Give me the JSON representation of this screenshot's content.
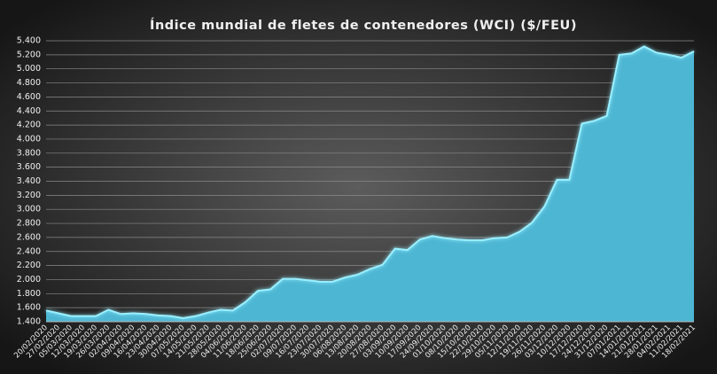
{
  "chart_data": {
    "type": "area",
    "title": "Índice mundial de fletes de contenedores (WCI) ($/FEU)",
    "categories": [
      "20/02/2020",
      "27/02/2020",
      "05/03/2020",
      "12/03/2020",
      "19/03/2020",
      "26/03/2020",
      "02/04/2020",
      "09/04/2020",
      "16/04/2020",
      "23/04/2020",
      "30/04/2020",
      "07/05/2020",
      "14/05/2020",
      "21/05/2020",
      "28/05/2020",
      "04/06/2020",
      "11/06/2020",
      "18/06/2020",
      "25/06/2020",
      "02/07/2020",
      "09/07/2020",
      "16/07/2020",
      "23/07/2020",
      "30/07/2020",
      "06/08/2020",
      "13/08/2020",
      "20/08/2020",
      "27/08/2020",
      "03/09/2020",
      "10/09/2020",
      "17/09/2020",
      "24/09/2020",
      "01/10/2020",
      "08/10/2020",
      "15/10/2020",
      "22/10/2020",
      "29/10/2020",
      "05/11/2020",
      "12/11/2020",
      "19/11/2020",
      "26/11/2020",
      "03/12/2020",
      "10/12/2020",
      "17/12/2020",
      "24/12/2020",
      "31/12/2020",
      "07/01/2021",
      "14/01/2021",
      "21/01/2021",
      "28/01/2021",
      "04/02/2021",
      "11/02/2021",
      "18/02/2021"
    ],
    "values": [
      1560,
      1520,
      1480,
      1480,
      1480,
      1570,
      1510,
      1520,
      1510,
      1490,
      1480,
      1450,
      1480,
      1530,
      1570,
      1560,
      1680,
      1840,
      1860,
      2010,
      2010,
      1990,
      1970,
      1970,
      2030,
      2070,
      2150,
      2210,
      2440,
      2420,
      2570,
      2620,
      2590,
      2570,
      2560,
      2560,
      2590,
      2600,
      2680,
      2810,
      3040,
      3420,
      3420,
      4220,
      4260,
      4330,
      5200,
      5220,
      5320,
      5230,
      5200,
      5160,
      5250
    ],
    "color": "#4db6d3",
    "ylim": [
      1400,
      5400
    ],
    "yticks": [
      {
        "value": 1400,
        "label": "1.400"
      },
      {
        "value": 1600,
        "label": "1.600"
      },
      {
        "value": 1800,
        "label": "1.800"
      },
      {
        "value": 2000,
        "label": "2.000"
      },
      {
        "value": 2200,
        "label": "2.200"
      },
      {
        "value": 2400,
        "label": "2.400"
      },
      {
        "value": 2600,
        "label": "2.600"
      },
      {
        "value": 2800,
        "label": "2.800"
      },
      {
        "value": 3000,
        "label": "3.000"
      },
      {
        "value": 3200,
        "label": "3.200"
      },
      {
        "value": 3400,
        "label": "3.400"
      },
      {
        "value": 3600,
        "label": "3.600"
      },
      {
        "value": 3800,
        "label": "3.800"
      },
      {
        "value": 4000,
        "label": "4.000"
      },
      {
        "value": 4200,
        "label": "4.200"
      },
      {
        "value": 4400,
        "label": "4.400"
      },
      {
        "value": 4600,
        "label": "4.600"
      },
      {
        "value": 4800,
        "label": "4.800"
      },
      {
        "value": 5000,
        "label": "5.000"
      },
      {
        "value": 5200,
        "label": "5.200"
      },
      {
        "value": 5400,
        "label": "5.400"
      }
    ],
    "grid": true
  }
}
